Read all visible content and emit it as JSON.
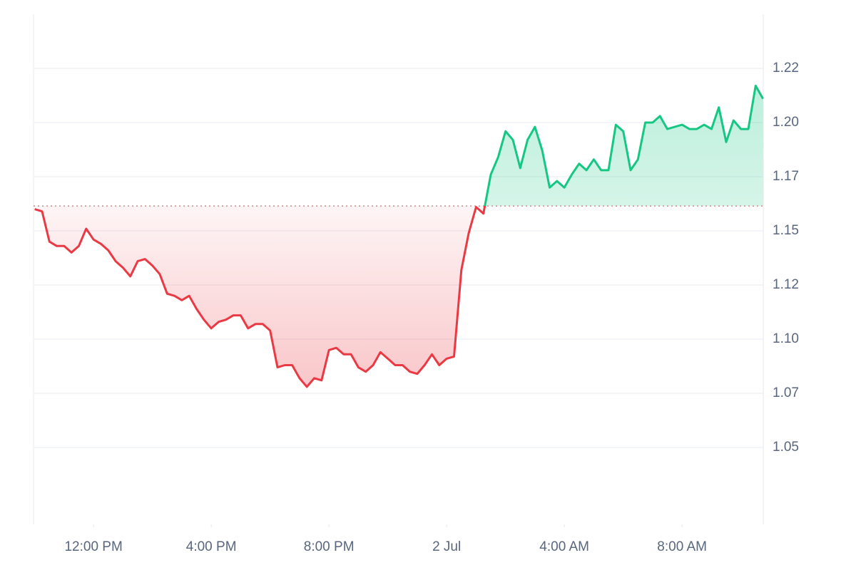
{
  "chart_data": {
    "type": "line",
    "x": [
      10,
      10.25,
      10.5,
      10.75,
      11,
      11.25,
      11.5,
      11.75,
      12,
      12.25,
      12.5,
      12.75,
      13,
      13.25,
      13.5,
      13.75,
      14,
      14.25,
      14.5,
      14.75,
      15,
      15.25,
      15.5,
      15.75,
      16,
      16.25,
      16.5,
      16.75,
      17,
      17.25,
      17.5,
      17.75,
      18,
      18.25,
      18.5,
      18.75,
      19,
      19.25,
      19.5,
      19.75,
      20,
      20.25,
      20.5,
      20.75,
      21,
      21.25,
      21.5,
      21.75,
      22,
      22.25,
      22.5,
      22.75,
      23,
      23.25,
      23.5,
      23.75,
      24,
      24.25,
      24.5,
      24.75,
      25,
      25.25,
      25.5,
      25.75,
      26,
      26.25,
      26.5,
      26.75,
      27,
      27.25,
      27.5,
      27.75,
      28,
      28.25,
      28.5,
      28.75,
      29,
      29.25,
      29.5,
      29.75,
      30,
      30.25,
      30.5,
      30.75,
      31,
      31.25,
      31.5,
      31.75,
      32,
      32.25,
      32.5,
      32.75,
      33,
      33.25,
      33.5,
      33.75,
      34,
      34.25,
      34.5,
      34.75
    ],
    "values": [
      1.16,
      1.159,
      1.145,
      1.143,
      1.143,
      1.14,
      1.143,
      1.151,
      1.146,
      1.144,
      1.141,
      1.136,
      1.133,
      1.129,
      1.136,
      1.137,
      1.134,
      1.13,
      1.121,
      1.12,
      1.118,
      1.12,
      1.114,
      1.109,
      1.105,
      1.108,
      1.109,
      1.111,
      1.111,
      1.105,
      1.107,
      1.107,
      1.104,
      1.087,
      1.088,
      1.088,
      1.082,
      1.078,
      1.082,
      1.081,
      1.095,
      1.096,
      1.093,
      1.093,
      1.087,
      1.085,
      1.088,
      1.094,
      1.091,
      1.088,
      1.088,
      1.085,
      1.084,
      1.088,
      1.093,
      1.088,
      1.091,
      1.092,
      1.132,
      1.149,
      1.161,
      1.158,
      1.176,
      1.184,
      1.196,
      1.192,
      1.179,
      1.192,
      1.198,
      1.187,
      1.17,
      1.173,
      1.17,
      1.176,
      1.181,
      1.178,
      1.183,
      1.178,
      1.178,
      1.199,
      1.196,
      1.178,
      1.183,
      1.2,
      1.2,
      1.203,
      1.197,
      1.198,
      1.199,
      1.197,
      1.197,
      1.199,
      1.197,
      1.207,
      1.191,
      1.201,
      1.197,
      1.197,
      1.217,
      1.211
    ],
    "baseline": 1.1615,
    "up_color": "#16c784",
    "down_color": "#ea3943",
    "xlim": [
      9.96,
      34.76
    ],
    "ylim": [
      1.0145,
      1.25
    ],
    "xticks": [
      {
        "value": 12,
        "label": "12:00 PM"
      },
      {
        "value": 16,
        "label": "4:00 PM"
      },
      {
        "value": 20,
        "label": "8:00 PM"
      },
      {
        "value": 24,
        "label": "2 Jul"
      },
      {
        "value": 28,
        "label": "4:00 AM"
      },
      {
        "value": 32,
        "label": "8:00 AM"
      }
    ],
    "yticks": [
      1.05,
      {
        "value": 1.075,
        "label": "1.07"
      },
      {
        "value": 1.1,
        "label": "1.10"
      },
      {
        "value": 1.125,
        "label": "1.12"
      },
      1.15,
      {
        "value": 1.175,
        "label": "1.17"
      },
      {
        "value": 1.2,
        "label": "1.20"
      },
      {
        "value": 1.225,
        "label": "1.22"
      }
    ],
    "grid": true
  }
}
